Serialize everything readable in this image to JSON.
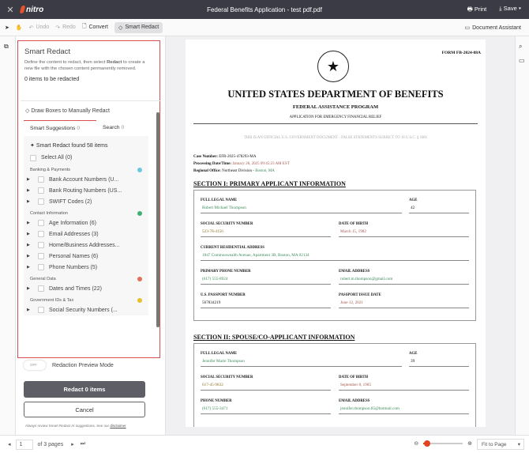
{
  "app": {
    "title": "Federal Benefits Application - test pdf.pdf",
    "logo": "nitro",
    "print": "Print",
    "save": "Save",
    "brand_color": "#e8542a"
  },
  "toolbar": {
    "undo": "Undo",
    "redo": "Redo",
    "convert": "Convert",
    "smart_redact": "Smart Redact",
    "document_assistant": "Document Assistant"
  },
  "panel": {
    "title": "Smart Redact",
    "desc_pre": "Define the content to redact, then select ",
    "desc_bold": "Redact",
    "desc_post": " to create a new file with the chosen content permanently removed.",
    "count": "0 items to be redacted",
    "draw_boxes": "Draw Boxes to Manually Redact",
    "tabs": [
      {
        "label": "Smart Suggestions",
        "count": "0"
      },
      {
        "label": "Search",
        "count": "0"
      }
    ],
    "found": "Smart Redact found 58 items",
    "select_all": "Select All (0)",
    "categories": [
      {
        "name": "Banking & Payments",
        "color": "#6cc7e0",
        "items": [
          "Bank Account Numbers (U...",
          "Bank Routing Numbers (US...",
          "SWIFT Codes (2)"
        ]
      },
      {
        "name": "Contact Information",
        "color": "#3cb371",
        "items": [
          "Age Information (6)",
          "Email Addresses (3)",
          "Home/Business Addresses...",
          "Personal Names (6)",
          "Phone Numbers (5)"
        ]
      },
      {
        "name": "General Data",
        "color": "#e0705a",
        "items": [
          "Dates and Times (22)"
        ]
      },
      {
        "name": "Government IDs & Tax",
        "color": "#e6c030",
        "items": [
          "Social Security Numbers (..."
        ]
      }
    ],
    "toggle": "OFF",
    "preview_mode": "Redaction Preview Mode",
    "redact_btn": "Redact 0 items",
    "cancel_btn": "Cancel",
    "disclaimer_pre": "Always review Smart Redact AI suggestions. See our ",
    "disclaimer_link": "disclaimer"
  },
  "doc": {
    "form_no": "FORM FB-2024-88A",
    "h1": "UNITED STATES DEPARTMENT OF BENEFITS",
    "h2": "FEDERAL ASSISTANCE PROGRAM",
    "h3": "APPLICATION FOR EMERGENCY FINANCIAL RELIEF",
    "warning": "THIS IS AN OFFICIAL U.S. GOVERNMENT DOCUMENT - FALSE STATEMENTS SUBJECT TO 18 U.S.C. § 1001",
    "case_label": "Case Number:",
    "case": "EFR-2025-478293-MA",
    "proc_label": "Processing Date/Time:",
    "proc": "January 28, 2025 09:45:23 AM EST",
    "office_label": "Regional Office:",
    "office_pre": "Northeast Division - ",
    "office_city": "Boston, MA",
    "s1": {
      "title": "SECTION I: PRIMARY APPLICANT INFORMATION",
      "name_l": "FULL LEGAL NAME",
      "name": "Robert Michael Thompson",
      "age_l": "AGE",
      "age": "42",
      "ssn_l": "SOCIAL SECURITY NUMBER",
      "ssn": "523-78-4156",
      "dob_l": "DATE OF BIRTH",
      "dob": "March 15, 1982",
      "addr_l": "CURRENT RESIDENTIAL ADDRESS",
      "addr": "1847 Commonwealth Avenue, Apartment 3B, Boston, MA 02134",
      "phone_l": "PRIMARY PHONE NUMBER",
      "phone": "(617) 555-8924",
      "email_l": "EMAIL ADDRESS",
      "email": "robert.m.thompson@gmail.com",
      "pass_l": "U.S. PASSPORT NUMBER",
      "pass": "567834219",
      "pdate_l": "PASSPORT ISSUE DATE",
      "pdate": "June 12, 2021"
    },
    "s2": {
      "title": "SECTION II: SPOUSE/CO-APPLICANT INFORMATION",
      "name_l": "FULL LEGAL NAME",
      "name": "Jennifer Marie Thompson",
      "age_l": "AGE",
      "age": "39",
      "ssn_l": "SOCIAL SECURITY NUMBER",
      "ssn": "617-45-9832",
      "dob_l": "DATE OF BIRTH",
      "dob": "September 8, 1985",
      "phone_l": "PHONE NUMBER",
      "phone": "(617) 555-3471",
      "email_l": "EMAIL ADDRESS",
      "email": "jennifer.thompson.85@hotmail.com"
    }
  },
  "footer": {
    "page": "1",
    "of_pages": "of 3 pages",
    "zoom_level": 0.1,
    "fit": "Fit to Page"
  }
}
